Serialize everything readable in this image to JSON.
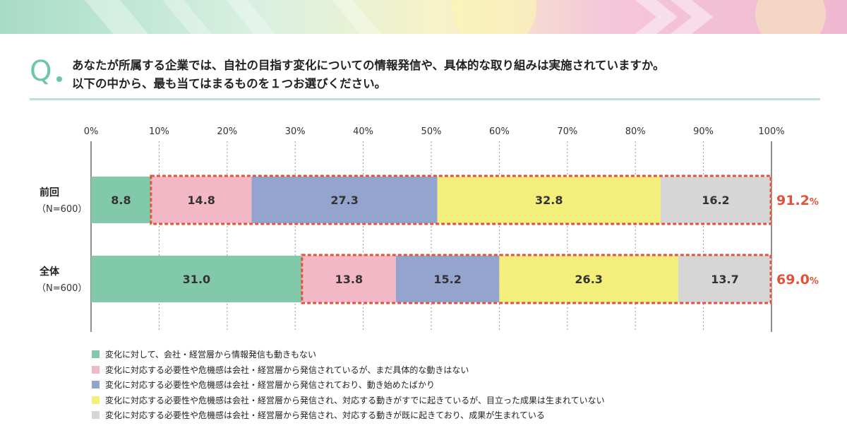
{
  "question": {
    "letter": "Q",
    "line1": "あなたが所属する企業では、自社の目指す変化についての情報発信や、具体的な取り組みは実施されていますか。",
    "line2": "以下の中から、最も当てはまるものを１つお選びください。"
  },
  "colors": {
    "accent": "#6fc5a8",
    "highlight_box": "#e0533a",
    "highlight_text": "#e0533a"
  },
  "chart_data": {
    "type": "bar",
    "orientation": "horizontal",
    "stacked": true,
    "percent_stacked": true,
    "xlim": [
      0,
      100
    ],
    "x_ticks": [
      "0%",
      "10%",
      "20%",
      "30%",
      "40%",
      "50%",
      "60%",
      "70%",
      "80%",
      "90%",
      "100%"
    ],
    "grid": true,
    "legend_position": "bottom-left",
    "categories": [
      {
        "label": "前回",
        "sublabel": "（N=600）"
      },
      {
        "label": "全体",
        "sublabel": "（N=600）"
      }
    ],
    "series": [
      {
        "name": "変化に対して、会社・経営層から情報発信も動きもない",
        "color": "#82c9ab",
        "values": [
          8.8,
          31.0
        ]
      },
      {
        "name": "変化に対応する必要性や危機感は会社・経営層から発信されているが、まだ具体的な動きはない",
        "color": "#f3b8c6",
        "values": [
          14.8,
          13.8
        ]
      },
      {
        "name": "変化に対応する必要性や危機感は会社・経営層から発信されており、動き始めたばかり",
        "color": "#93a5cf",
        "values": [
          27.3,
          15.2
        ]
      },
      {
        "name": "変化に対応する必要性や危機感は会社・経営層から発信され、対応する動きがすでに起きているが、目立った成果は生まれていない",
        "color": "#f4ee7a",
        "values": [
          32.8,
          26.3
        ]
      },
      {
        "name": "変化に対応する必要性や危機感は会社・経営層から発信され、対応する動きが既に起きており、成果が生まれている",
        "color": "#d5d6d5",
        "values": [
          16.2,
          13.7
        ]
      }
    ],
    "highlight_totals": [
      {
        "value": "91.2",
        "unit": "%"
      },
      {
        "value": "69.0",
        "unit": "%"
      }
    ]
  }
}
